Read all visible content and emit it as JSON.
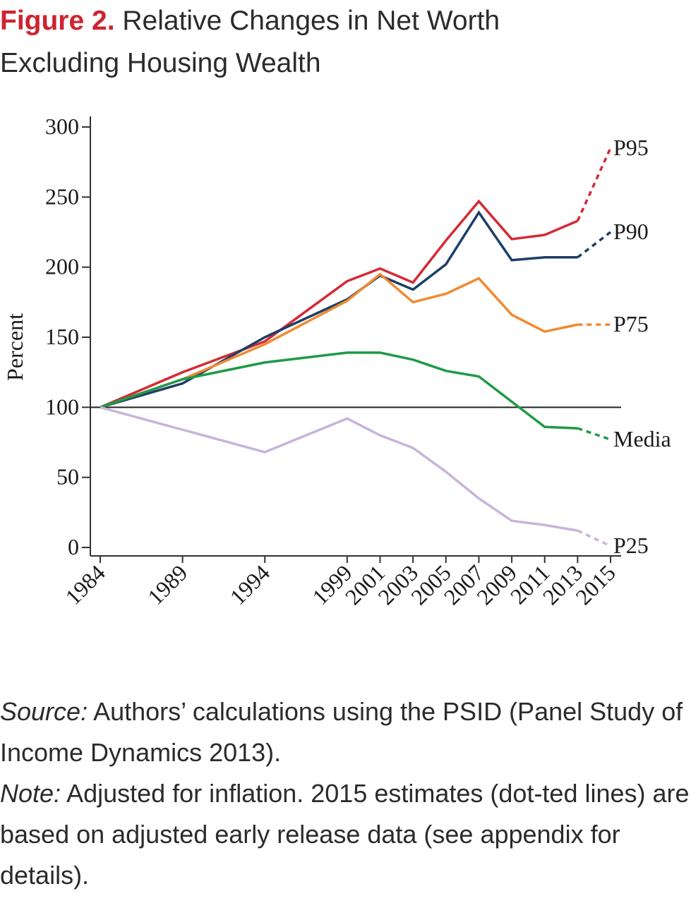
{
  "header": {
    "figure_label": "Figure 2.",
    "title_line1": "Relative Changes in Net Worth",
    "title_line2": "Excluding Housing Wealth"
  },
  "chart_data": {
    "type": "line",
    "ylabel": "Percent",
    "xlabel": "",
    "ylim": [
      0,
      300
    ],
    "yticks": [
      "0",
      "50",
      "100",
      "150",
      "200",
      "250",
      "300"
    ],
    "x": [
      "1984",
      "1989",
      "1994",
      "1999",
      "2001",
      "2003",
      "2005",
      "2007",
      "2009",
      "2011",
      "2013",
      "2015"
    ],
    "reference_line": 100,
    "dotted_from": "2013",
    "series": [
      {
        "name": "P95",
        "color": "#d42a35",
        "values": [
          100,
          125,
          147,
          190,
          199,
          189,
          219,
          247,
          220,
          223,
          233,
          285
        ]
      },
      {
        "name": "P90",
        "color": "#1c3f66",
        "values": [
          100,
          117,
          150,
          177,
          194,
          184,
          202,
          239,
          205,
          207,
          207,
          225
        ]
      },
      {
        "name": "P75",
        "color": "#f08a32",
        "values": [
          100,
          120,
          145,
          176,
          195,
          175,
          181,
          192,
          166,
          154,
          159,
          159
        ]
      },
      {
        "name": "Media",
        "color": "#1f9a46",
        "values": [
          100,
          120,
          132,
          139,
          139,
          134,
          126,
          122,
          104,
          86,
          85,
          77
        ]
      },
      {
        "name": "P25",
        "color": "#c7b4da",
        "values": [
          100,
          84,
          68,
          92,
          80,
          71,
          54,
          35,
          19,
          16,
          12,
          1
        ]
      }
    ]
  },
  "notes": {
    "source_label": "Source:",
    "source_text": " Authors’ calculations using the PSID (Panel Study of Income Dynamics 2013).",
    "note_label": "Note:",
    "note_text": " Adjusted for inflation. 2015 estimates (dot-ted lines) are based on adjusted early release data (see appendix for details)."
  }
}
